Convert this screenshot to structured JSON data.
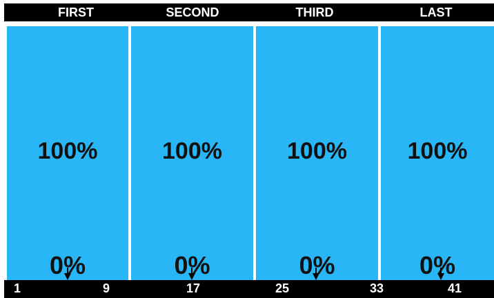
{
  "columns": [
    {
      "label": "FIRST",
      "top_value": "100%",
      "bottom_value": "0%"
    },
    {
      "label": "SECOND",
      "top_value": "100%",
      "bottom_value": "0%"
    },
    {
      "label": "THIRD",
      "top_value": "100%",
      "bottom_value": "0%"
    },
    {
      "label": "LAST",
      "top_value": "100%",
      "bottom_value": "0%"
    }
  ],
  "footer_ticks": [
    "1",
    "9",
    "17",
    "25",
    "33",
    "41"
  ],
  "colors": {
    "panel": "#29b6f6",
    "bar": "#000000",
    "text_light": "#ffffff",
    "text_dark": "#111111"
  }
}
